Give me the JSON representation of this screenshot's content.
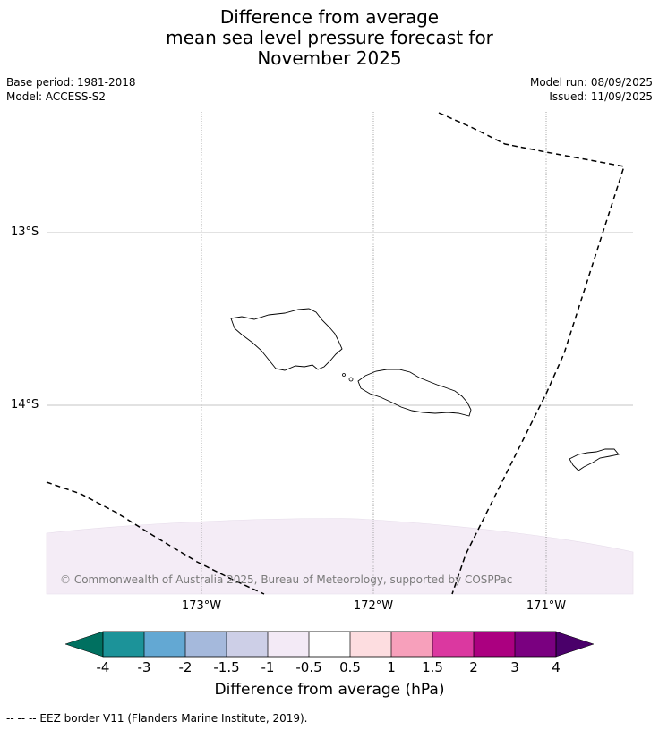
{
  "title": {
    "line1": "Difference from average",
    "line2": "mean sea level pressure forecast for",
    "line3": "November 2025"
  },
  "meta": {
    "base_period": "Base period: 1981-2018",
    "model": "Model: ACCESS-S2",
    "model_run": "Model run: 08/09/2025",
    "issued": "Issued: 11/09/2025"
  },
  "map": {
    "latitude_labels": [
      "13°S",
      "14°S"
    ],
    "longitude_labels": [
      "173°W",
      "172°W",
      "171°W"
    ],
    "copyright": "© Commonwealth of Australia 2025, Bureau of Meteorology, supported by COSPPac",
    "colors": {
      "shade_lowest_band": "#f4ecf6",
      "coastline": "#000000",
      "eez_border": "#000000",
      "gridline": "#b0b0b0"
    }
  },
  "colorbar": {
    "tick_labels": [
      "-4",
      "-3",
      "-2",
      "-1.5",
      "-1",
      "-0.5",
      "0.5",
      "1",
      "1.5",
      "2",
      "3",
      "4"
    ],
    "colors": [
      "#007060",
      "#1c9399",
      "#63a8d3",
      "#a5b9dc",
      "#cdcfe7",
      "#f3eaf6",
      "#ffffff",
      "#fddde0",
      "#f7a0bb",
      "#db38a0",
      "#ab0080",
      "#7a0080",
      "#4a006a"
    ],
    "label": "Difference from average (hPa)"
  },
  "legend_note": "--  --  -- EEZ border V11 (Flanders Marine Institute, 2019)."
}
